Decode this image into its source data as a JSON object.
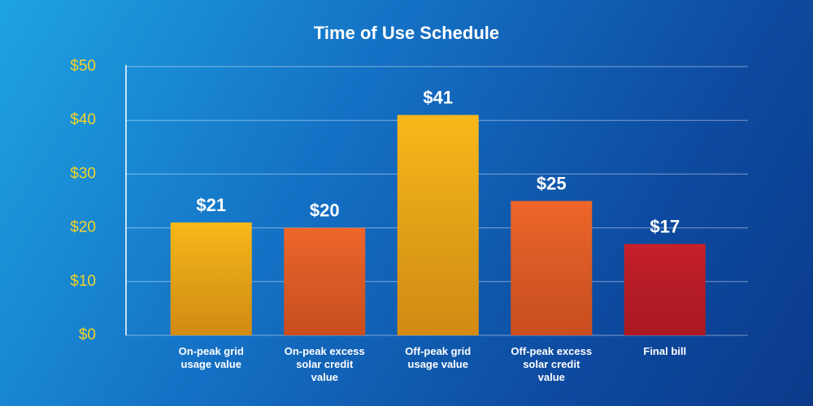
{
  "chart_data": {
    "type": "bar",
    "title": "Time of Use Schedule",
    "categories": [
      "On-peak grid usage value",
      "On-peak excess solar credit value",
      "Off-peak grid usage value",
      "Off-peak excess solar credit value",
      "Final bill"
    ],
    "values": [
      21,
      20,
      41,
      25,
      17
    ],
    "value_labels": [
      "$21",
      "$20",
      "$41",
      "$25",
      "$17"
    ],
    "colors": [
      "#fbb81a",
      "#f0662a",
      "#fbb81a",
      "#f0662a",
      "#c8202a"
    ],
    "ylim": [
      0,
      50
    ],
    "yticks": [
      {
        "value": 0,
        "label": "$0"
      },
      {
        "value": 10,
        "label": "$10"
      },
      {
        "value": 20,
        "label": "$20"
      },
      {
        "value": 30,
        "label": "$30"
      },
      {
        "value": 40,
        "label": "$40"
      },
      {
        "value": 50,
        "label": "$50"
      }
    ],
    "grid": true
  }
}
